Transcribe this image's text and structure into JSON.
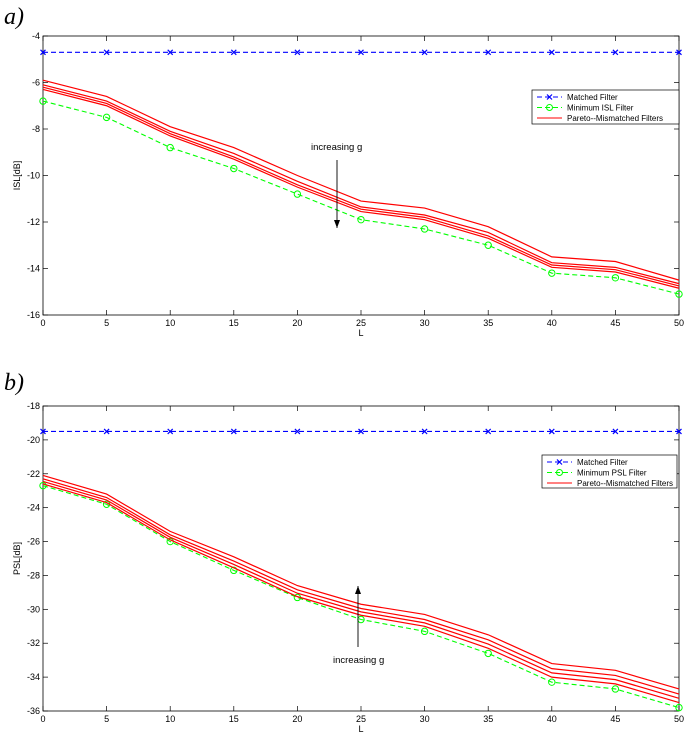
{
  "chart_data": [
    {
      "type": "line",
      "panel_label": "a)",
      "xlabel": "L",
      "ylabel": "ISL[dB]",
      "xlim": [
        0,
        50
      ],
      "ylim": [
        -16,
        -4
      ],
      "xticks": [
        0,
        5,
        10,
        15,
        20,
        25,
        30,
        35,
        40,
        45,
        50
      ],
      "yticks": [
        -16,
        -14,
        -12,
        -10,
        -8,
        -6,
        -4
      ],
      "grid": false,
      "legend_position": "top-right",
      "annotation": {
        "text": "increasing g",
        "arrow": "down"
      },
      "x": [
        0,
        5,
        10,
        15,
        20,
        25,
        30,
        35,
        40,
        45,
        50
      ],
      "series": [
        {
          "name": "Matched Filter",
          "color": "#0000ff",
          "style": "dashed",
          "marker": "x",
          "values": [
            -4.7,
            -4.7,
            -4.7,
            -4.7,
            -4.7,
            -4.7,
            -4.7,
            -4.7,
            -4.7,
            -4.7,
            -4.7
          ]
        },
        {
          "name": "Minimum ISL Filter",
          "color": "#00ff00",
          "style": "dashed",
          "marker": "circle",
          "values": [
            -6.8,
            -7.5,
            -8.8,
            -9.7,
            -10.8,
            -11.9,
            -12.3,
            -13.0,
            -14.2,
            -14.4,
            -15.1
          ]
        },
        {
          "name": "Pareto--Mismatched Filters",
          "color": "#ff0000",
          "style": "solid",
          "marker": "none",
          "values": [
            -5.9,
            -6.6,
            -7.9,
            -8.8,
            -10.0,
            -11.1,
            -11.4,
            -12.2,
            -13.5,
            -13.7,
            -14.5
          ]
        },
        {
          "name": "",
          "color": "#ff0000",
          "style": "solid",
          "marker": "none",
          "values": [
            -6.1,
            -6.8,
            -8.1,
            -9.05,
            -10.25,
            -11.35,
            -11.7,
            -12.45,
            -13.75,
            -13.95,
            -14.65
          ]
        },
        {
          "name": "",
          "color": "#ff0000",
          "style": "solid",
          "marker": "none",
          "values": [
            -6.2,
            -6.9,
            -8.2,
            -9.2,
            -10.4,
            -11.45,
            -11.8,
            -12.6,
            -13.85,
            -14.05,
            -14.75
          ]
        },
        {
          "name": "",
          "color": "#ff0000",
          "style": "solid",
          "marker": "none",
          "values": [
            -6.3,
            -7.0,
            -8.3,
            -9.3,
            -10.5,
            -11.55,
            -11.9,
            -12.7,
            -13.95,
            -14.15,
            -14.85
          ]
        }
      ]
    },
    {
      "type": "line",
      "panel_label": "b)",
      "xlabel": "L",
      "ylabel": "PSL[dB]",
      "xlim": [
        0,
        50
      ],
      "ylim": [
        -36,
        -18
      ],
      "xticks": [
        0,
        5,
        10,
        15,
        20,
        25,
        30,
        35,
        40,
        45,
        50
      ],
      "yticks": [
        -36,
        -34,
        -32,
        -30,
        -28,
        -26,
        -24,
        -22,
        -20,
        -18
      ],
      "grid": false,
      "legend_position": "top-right",
      "annotation": {
        "text": "increasing g",
        "arrow": "up"
      },
      "x": [
        0,
        5,
        10,
        15,
        20,
        25,
        30,
        35,
        40,
        45,
        50
      ],
      "series": [
        {
          "name": "Matched Filter",
          "color": "#0000ff",
          "style": "dashed",
          "marker": "x",
          "values": [
            -19.5,
            -19.5,
            -19.5,
            -19.5,
            -19.5,
            -19.5,
            -19.5,
            -19.5,
            -19.5,
            -19.5,
            -19.5
          ]
        },
        {
          "name": "Minimum PSL Filter",
          "color": "#00ff00",
          "style": "dashed",
          "marker": "circle",
          "values": [
            -22.7,
            -23.8,
            -26.0,
            -27.7,
            -29.3,
            -30.6,
            -31.3,
            -32.6,
            -34.3,
            -34.7,
            -35.8
          ]
        },
        {
          "name": "Pareto--Mismatched Filters",
          "color": "#ff0000",
          "style": "solid",
          "marker": "none",
          "values": [
            -22.1,
            -23.2,
            -25.4,
            -26.9,
            -28.6,
            -29.7,
            -30.3,
            -31.5,
            -33.2,
            -33.6,
            -34.7
          ]
        },
        {
          "name": "",
          "color": "#ff0000",
          "style": "solid",
          "marker": "none",
          "values": [
            -22.3,
            -23.4,
            -25.6,
            -27.15,
            -28.85,
            -29.95,
            -30.6,
            -31.8,
            -33.5,
            -33.9,
            -35.0
          ]
        },
        {
          "name": "",
          "color": "#ff0000",
          "style": "solid",
          "marker": "none",
          "values": [
            -22.45,
            -23.55,
            -25.75,
            -27.35,
            -29.05,
            -30.15,
            -30.8,
            -32.05,
            -33.75,
            -34.15,
            -35.25
          ]
        },
        {
          "name": "",
          "color": "#ff0000",
          "style": "solid",
          "marker": "none",
          "values": [
            -22.6,
            -23.7,
            -25.9,
            -27.55,
            -29.25,
            -30.35,
            -31.0,
            -32.3,
            -34.0,
            -34.4,
            -35.5
          ]
        }
      ]
    }
  ]
}
